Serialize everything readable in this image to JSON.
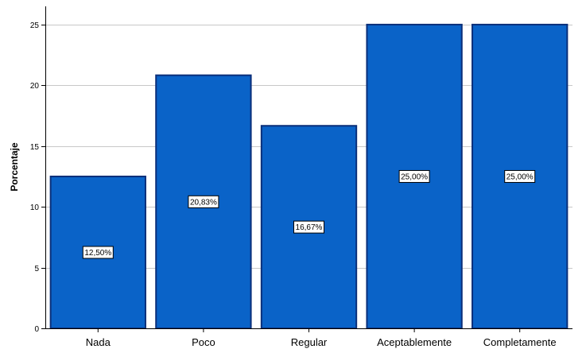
{
  "chart_data": {
    "type": "bar",
    "categories": [
      "Nada",
      "Poco",
      "Regular",
      "Aceptablemente",
      "Completamente"
    ],
    "values": [
      12.5,
      20.83,
      16.67,
      25.0,
      25.0
    ],
    "data_labels": [
      "12,50%",
      "20,83%",
      "16,67%",
      "25,00%",
      "25,00%"
    ],
    "title": "",
    "xlabel": "",
    "ylabel": "Porcentaje",
    "ylim": [
      0,
      26.5
    ],
    "yticks": [
      0,
      5,
      10,
      15,
      20,
      25
    ],
    "ytick_labels": [
      "0",
      "5",
      "10",
      "15",
      "20",
      "25"
    ],
    "grid": "horizontal",
    "legend": "none",
    "colors": {
      "bar_fill": "#0a63c8",
      "bar_stroke": "#0a2f7a",
      "grid": "#c8c8c8",
      "axis": "#000000"
    }
  }
}
